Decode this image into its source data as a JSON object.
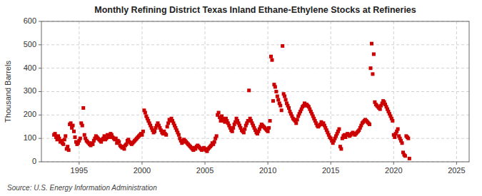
{
  "chart_data": {
    "type": "scatter",
    "title": "Monthly Refining District Texas Inland Ethane-Ethylene Stocks at Refineries",
    "y_label": "Thousand Barrels",
    "annotation": "Source: U.S. Energy Information Administration",
    "color": "#CC0000",
    "marker": "square",
    "grid": true,
    "xlim": [
      1992.0,
      2026.0
    ],
    "ylim": [
      0,
      600
    ],
    "xticks": [
      1995,
      2000,
      2005,
      2010,
      2015,
      2020,
      2025
    ],
    "yticks": [
      0,
      100,
      200,
      300,
      400,
      500,
      600
    ],
    "x": [
      1993.0,
      1993.083,
      1993.167,
      1993.25,
      1993.333,
      1993.417,
      1993.5,
      1993.583,
      1993.667,
      1993.75,
      1993.833,
      1993.917,
      1994.0,
      1994.083,
      1994.167,
      1994.25,
      1994.333,
      1994.417,
      1994.5,
      1994.583,
      1994.667,
      1994.75,
      1994.833,
      1994.917,
      1995.0,
      1995.083,
      1995.167,
      1995.25,
      1995.333,
      1995.417,
      1995.5,
      1995.583,
      1995.667,
      1995.75,
      1995.833,
      1995.917,
      1996.0,
      1996.083,
      1996.167,
      1996.25,
      1996.333,
      1996.417,
      1996.5,
      1996.583,
      1996.667,
      1996.75,
      1996.833,
      1996.917,
      1997.0,
      1997.083,
      1997.167,
      1997.25,
      1997.333,
      1997.417,
      1997.5,
      1997.583,
      1997.667,
      1997.75,
      1997.833,
      1997.917,
      1998.0,
      1998.083,
      1998.167,
      1998.25,
      1998.333,
      1998.417,
      1998.5,
      1998.583,
      1998.667,
      1998.75,
      1998.833,
      1998.917,
      1999.0,
      1999.083,
      1999.167,
      1999.25,
      1999.333,
      1999.417,
      1999.5,
      1999.583,
      1999.667,
      1999.75,
      1999.833,
      1999.917,
      2000.0,
      2000.083,
      2000.167,
      2000.25,
      2000.333,
      2000.417,
      2000.5,
      2000.583,
      2000.667,
      2000.75,
      2000.833,
      2000.917,
      2001.0,
      2001.083,
      2001.167,
      2001.25,
      2001.333,
      2001.417,
      2001.5,
      2001.583,
      2001.667,
      2001.75,
      2001.833,
      2001.917,
      2002.0,
      2002.083,
      2002.167,
      2002.25,
      2002.333,
      2002.417,
      2002.5,
      2002.583,
      2002.667,
      2002.75,
      2002.833,
      2002.917,
      2003.0,
      2003.083,
      2003.167,
      2003.25,
      2003.333,
      2003.417,
      2003.5,
      2003.583,
      2003.667,
      2003.75,
      2003.833,
      2003.917,
      2004.0,
      2004.083,
      2004.167,
      2004.25,
      2004.333,
      2004.417,
      2004.5,
      2004.583,
      2004.667,
      2004.75,
      2004.833,
      2004.917,
      2005.0,
      2005.083,
      2005.167,
      2005.25,
      2005.333,
      2005.417,
      2005.5,
      2005.583,
      2005.667,
      2005.75,
      2005.833,
      2005.917,
      2006.0,
      2006.083,
      2006.167,
      2006.25,
      2006.333,
      2006.417,
      2006.5,
      2006.583,
      2006.667,
      2006.75,
      2006.833,
      2006.917,
      2007.0,
      2007.083,
      2007.167,
      2007.25,
      2007.333,
      2007.417,
      2007.5,
      2007.583,
      2007.667,
      2007.75,
      2007.833,
      2007.917,
      2008.0,
      2008.083,
      2008.167,
      2008.25,
      2008.333,
      2008.417,
      2008.5,
      2008.583,
      2008.667,
      2008.75,
      2008.833,
      2008.917,
      2009.0,
      2009.083,
      2009.167,
      2009.25,
      2009.333,
      2009.417,
      2009.5,
      2009.583,
      2009.667,
      2009.75,
      2009.833,
      2009.917,
      2010.0,
      2010.083,
      2010.167,
      2010.25,
      2010.333,
      2010.417,
      2010.5,
      2010.583,
      2010.667,
      2010.75,
      2010.833,
      2010.917,
      2011.0,
      2011.083,
      2011.167,
      2011.25,
      2011.333,
      2011.417,
      2011.5,
      2011.583,
      2011.667,
      2011.75,
      2011.833,
      2011.917,
      2012.0,
      2012.083,
      2012.167,
      2012.25,
      2012.333,
      2012.417,
      2012.5,
      2012.583,
      2012.667,
      2012.75,
      2012.833,
      2012.917,
      2013.0,
      2013.083,
      2013.167,
      2013.25,
      2013.333,
      2013.417,
      2013.5,
      2013.583,
      2013.667,
      2013.75,
      2013.833,
      2013.917,
      2014.0,
      2014.083,
      2014.167,
      2014.25,
      2014.333,
      2014.417,
      2014.5,
      2014.583,
      2014.667,
      2014.75,
      2014.833,
      2014.917,
      2015.0,
      2015.083,
      2015.167,
      2015.25,
      2015.333,
      2015.417,
      2015.5,
      2015.583,
      2015.667,
      2015.75,
      2015.833,
      2015.917,
      2016.0,
      2016.083,
      2016.167,
      2016.25,
      2016.333,
      2016.417,
      2016.5,
      2016.583,
      2016.667,
      2016.75,
      2016.833,
      2016.917,
      2017.0,
      2017.083,
      2017.167,
      2017.25,
      2017.333,
      2017.417,
      2017.5,
      2017.583,
      2017.667,
      2017.75,
      2017.833,
      2017.917,
      2018.0,
      2018.083,
      2018.167,
      2018.25,
      2018.333,
      2018.417,
      2018.5,
      2018.583,
      2018.667,
      2018.75,
      2018.833,
      2018.917,
      2019.0,
      2019.083,
      2019.167,
      2019.25,
      2019.333,
      2019.417,
      2019.5,
      2019.583,
      2019.667,
      2019.75,
      2019.833,
      2019.917,
      2020.0,
      2020.083,
      2020.167,
      2020.25,
      2020.333,
      2020.417,
      2020.5,
      2020.583,
      2020.667,
      2020.75,
      2020.833,
      2020.917,
      2021.0,
      2021.083,
      2021.167,
      2021.25
    ],
    "values": [
      115,
      120,
      105,
      95,
      110,
      100,
      85,
      90,
      80,
      75,
      95,
      110,
      55,
      65,
      50,
      160,
      165,
      145,
      155,
      130,
      105,
      85,
      75,
      80,
      90,
      100,
      165,
      155,
      230,
      115,
      100,
      90,
      85,
      80,
      75,
      70,
      80,
      75,
      90,
      100,
      110,
      105,
      100,
      95,
      90,
      85,
      95,
      100,
      110,
      95,
      100,
      115,
      110,
      105,
      120,
      115,
      105,
      100,
      95,
      100,
      80,
      90,
      85,
      70,
      65,
      60,
      65,
      55,
      70,
      75,
      90,
      95,
      85,
      80,
      75,
      80,
      85,
      90,
      95,
      100,
      105,
      110,
      115,
      120,
      115,
      130,
      220,
      210,
      195,
      185,
      175,
      165,
      155,
      145,
      135,
      125,
      130,
      145,
      155,
      165,
      155,
      145,
      135,
      125,
      120,
      130,
      120,
      115,
      150,
      165,
      180,
      175,
      185,
      175,
      165,
      155,
      145,
      135,
      125,
      115,
      100,
      90,
      80,
      85,
      95,
      90,
      85,
      80,
      75,
      70,
      65,
      60,
      55,
      50,
      60,
      55,
      65,
      70,
      65,
      60,
      55,
      50,
      55,
      60,
      55,
      50,
      45,
      55,
      60,
      65,
      70,
      80,
      75,
      85,
      100,
      110,
      200,
      210,
      190,
      175,
      195,
      185,
      175,
      170,
      185,
      175,
      165,
      155,
      145,
      135,
      130,
      145,
      160,
      170,
      185,
      175,
      165,
      155,
      145,
      135,
      130,
      125,
      140,
      155,
      165,
      175,
      305,
      185,
      175,
      165,
      155,
      145,
      135,
      125,
      120,
      130,
      140,
      150,
      160,
      155,
      150,
      145,
      140,
      135,
      130,
      145,
      175,
      450,
      435,
      260,
      330,
      320,
      300,
      280,
      265,
      250,
      240,
      220,
      495,
      290,
      280,
      265,
      250,
      240,
      230,
      215,
      205,
      195,
      185,
      180,
      175,
      165,
      180,
      195,
      205,
      215,
      225,
      235,
      240,
      250,
      240,
      245,
      240,
      235,
      225,
      215,
      205,
      195,
      185,
      175,
      165,
      155,
      150,
      155,
      160,
      170,
      160,
      165,
      155,
      145,
      135,
      125,
      115,
      105,
      100,
      90,
      80,
      90,
      100,
      110,
      120,
      130,
      140,
      65,
      55,
      100,
      110,
      115,
      105,
      115,
      120,
      115,
      110,
      115,
      120,
      125,
      120,
      115,
      120,
      125,
      130,
      135,
      145,
      155,
      165,
      170,
      175,
      180,
      175,
      170,
      165,
      160,
      400,
      505,
      375,
      460,
      255,
      245,
      240,
      235,
      230,
      225,
      240,
      250,
      260,
      255,
      245,
      235,
      225,
      215,
      205,
      195,
      185,
      175,
      115,
      105,
      120,
      130,
      140,
      110,
      100,
      90,
      80,
      40,
      30,
      25,
      110,
      105,
      100,
      14
    ]
  }
}
